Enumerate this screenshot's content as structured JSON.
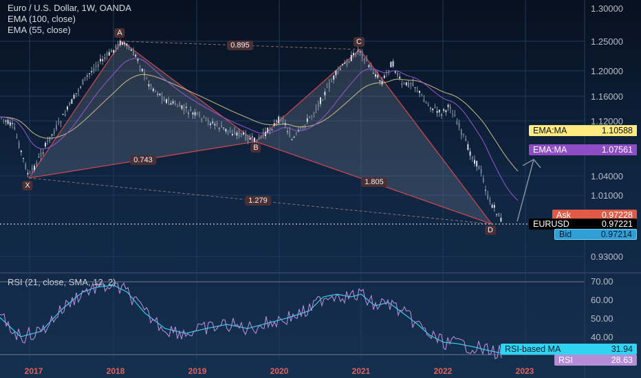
{
  "legend": {
    "symbol": "Euro / U.S. Dollar, 1W, OANDA",
    "ema100": "EMA (100, close)",
    "ema55": "EMA (55, close)"
  },
  "rsi_panel": {
    "title": "RSI (21, close, SMA, 12, 2)",
    "ticks": [
      "70.00",
      "60.00",
      "50.00",
      "40.00"
    ],
    "rsi_ma_label": "RSI-based MA",
    "rsi_ma_value": "31.94",
    "rsi_label": "RSI",
    "rsi_value": "28.63"
  },
  "price_axis": {
    "ticks": [
      "1.30000",
      "1.25000",
      "1.20000",
      "1.16000",
      "1.12000",
      "1.04000",
      "1.01000",
      "0.93000"
    ],
    "ema_ma_1_label": "EMA:MA",
    "ema_ma_1_value": "1.10588",
    "ema_ma_2_label": "EMA:MA",
    "ema_ma_2_value": "1.07561",
    "ask_label": "Ask",
    "ask_value": "0.97228",
    "symbol_label": "EURUSD",
    "last_value": "0.97221",
    "bid_label": "Bid",
    "bid_value": "0.97214"
  },
  "pattern": {
    "points": [
      "X",
      "A",
      "B",
      "C",
      "D"
    ],
    "ratios": [
      "0.895",
      "0.743",
      "1.805",
      "1.279"
    ]
  },
  "time_axis": {
    "years": [
      "2017",
      "2018",
      "2019",
      "2020",
      "2021",
      "2022",
      "2023"
    ]
  },
  "colors": {
    "ema_ma_1": "#ffeb7f",
    "ema_ma_2": "#9b59d0",
    "ask": "#e05a47",
    "bid": "#2f9fd6",
    "rsi_ma": "#31d4f0",
    "rsi": "#b58cd8",
    "pattern_line": "#c8474e",
    "year_text": "#e2615a"
  }
}
